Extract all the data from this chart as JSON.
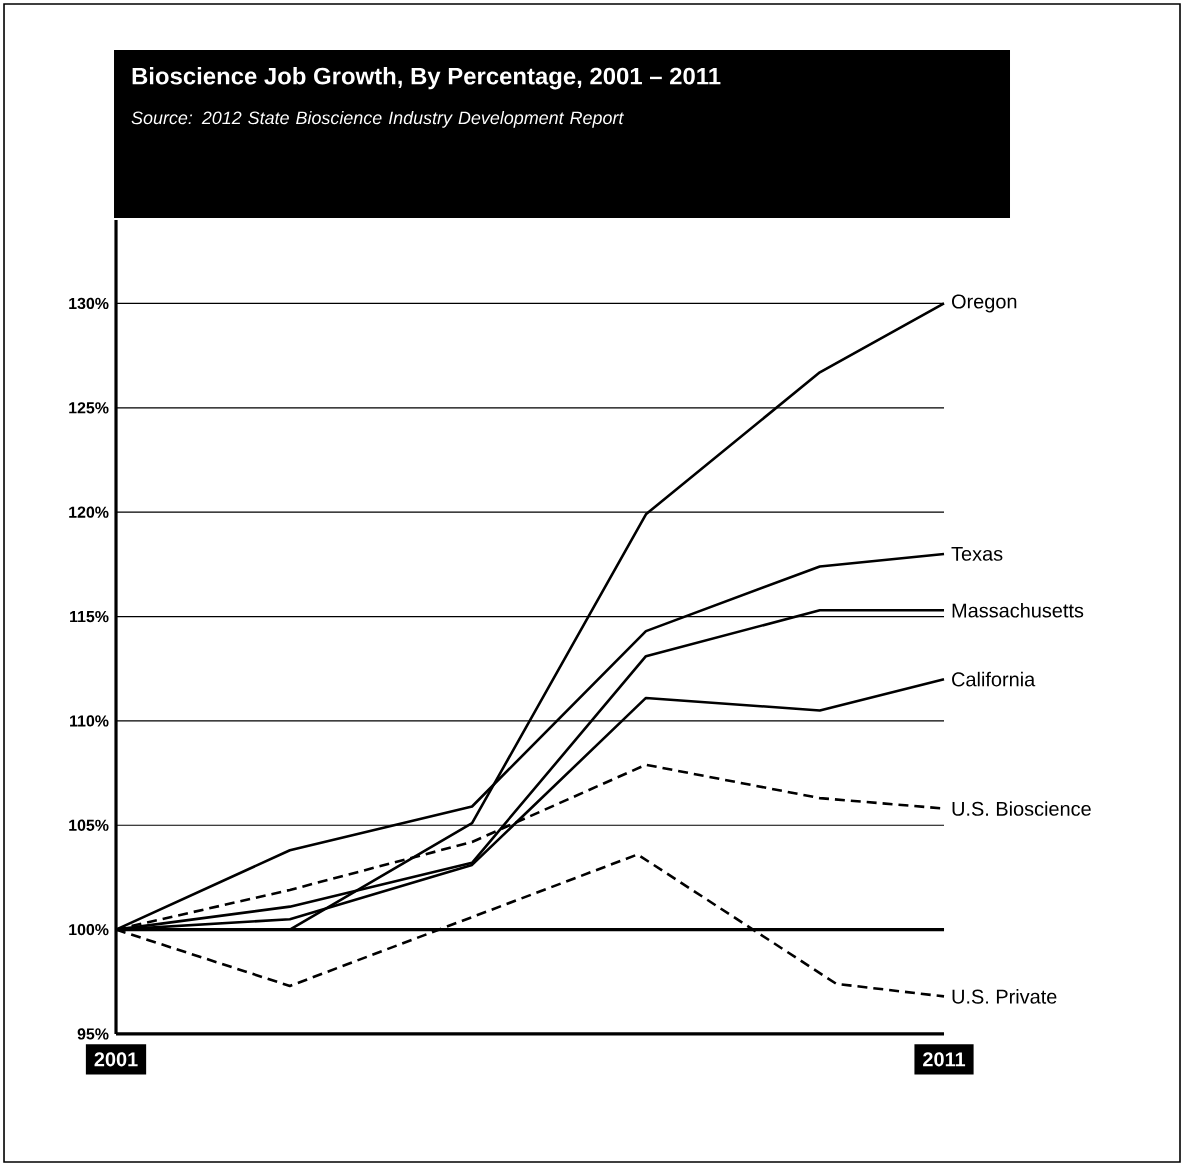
{
  "chart_data": {
    "type": "line",
    "title": "Bioscience Job Growth, By Percentage, 2001 – 2011",
    "annotations": [
      "Source: 2012 State Bioscience Industry Development Report"
    ],
    "x": [
      2001,
      2003.1,
      2005.3,
      2007.4,
      2009.5,
      2011
    ],
    "series": [
      {
        "name": "Oregon",
        "color": "#000000",
        "line_style": "solid",
        "values": [
          100,
          100,
          105.1,
          119.9,
          126.7,
          130
        ]
      },
      {
        "name": "Texas",
        "color": "#000000",
        "line_style": "solid",
        "values": [
          100,
          103.8,
          105.9,
          114.3,
          117.4,
          118
        ]
      },
      {
        "name": "Massachusetts",
        "color": "#000000",
        "line_style": "solid",
        "values": [
          100,
          101.1,
          103.2,
          113.1,
          115.3,
          115.3
        ]
      },
      {
        "name": "California",
        "color": "#000000",
        "line_style": "solid",
        "values": [
          100,
          100.5,
          103.1,
          111.1,
          110.5,
          112
        ]
      },
      {
        "name": "U.S. Bioscience",
        "color": "#000000",
        "line_style": "dashed",
        "values": [
          100,
          101.9,
          104.2,
          107.9,
          106.3,
          105.8
        ]
      },
      {
        "name": "U.S. Private",
        "color": "#000000",
        "line_style": "dashed",
        "x": [
          2001,
          2003.1,
          2007.3,
          2009.7,
          2011
        ],
        "values": [
          100,
          97.3,
          103.6,
          97.4,
          96.8
        ]
      }
    ],
    "xlim": [
      2001,
      2011
    ],
    "xticks": [
      2001,
      2011
    ],
    "ylim": [
      95,
      134
    ],
    "yticks": [
      {
        "value": 95,
        "label": "95%"
      },
      {
        "value": 100,
        "label": "100%"
      },
      {
        "value": 105,
        "label": "105%"
      },
      {
        "value": 110,
        "label": "110%"
      },
      {
        "value": 115,
        "label": "115%"
      },
      {
        "value": 120,
        "label": "120%"
      },
      {
        "value": 125,
        "label": "125%"
      },
      {
        "value": 130,
        "label": "130%"
      }
    ],
    "ref_lines": [
      {
        "axis": "y",
        "value": 100,
        "color": "#000000"
      }
    ],
    "grid": "y",
    "marker": "none"
  }
}
